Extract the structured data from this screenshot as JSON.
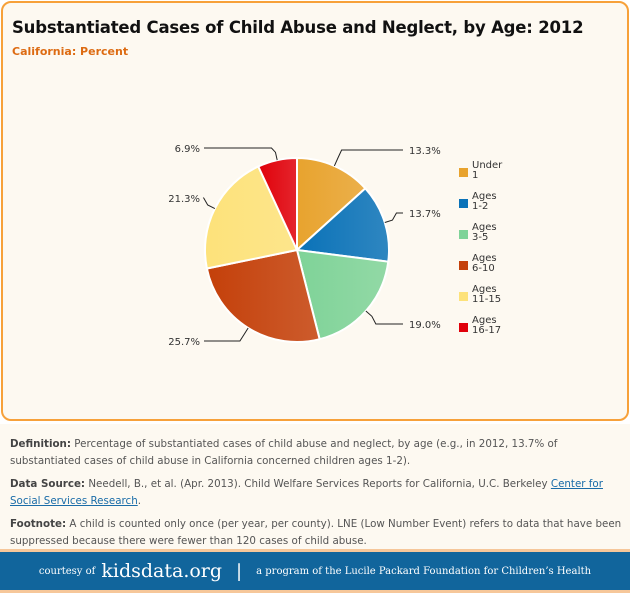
{
  "header": {
    "title": "Substantiated Cases of Child Abuse and Neglect, by Age: 2012",
    "subtitle": "California: Percent"
  },
  "chart_data": {
    "type": "pie",
    "title": "Substantiated Cases of Child Abuse and Neglect, by Age: 2012",
    "subtitle": "California: Percent",
    "categories": [
      "Under 1",
      "Ages 1-2",
      "Ages 3-5",
      "Ages 6-10",
      "Ages 11-15",
      "Ages 16-17"
    ],
    "legend_lines": [
      [
        "Under",
        "1"
      ],
      [
        "Ages",
        "1-2"
      ],
      [
        "Ages",
        "3-5"
      ],
      [
        "Ages",
        "6-10"
      ],
      [
        "Ages",
        "11-15"
      ],
      [
        "Ages",
        "16-17"
      ]
    ],
    "values": [
      13.3,
      13.7,
      19.0,
      25.7,
      21.3,
      6.9
    ],
    "data_labels": [
      "13.3%",
      "13.7%",
      "19.0%",
      "25.7%",
      "21.3%",
      "6.9%"
    ],
    "colors": [
      "#e8a32e",
      "#0a72b8",
      "#7fd398",
      "#c4400a",
      "#fde27a",
      "#e0000a"
    ],
    "legend_position": "right"
  },
  "notes": {
    "definition_label": "Definition:",
    "definition": " Percentage of substantiated cases of child abuse and neglect, by age (e.g., in 2012, 13.7% of substantiated cases of child abuse in California concerned children ages 1-2).",
    "source_label": "Data Source:",
    "source": " Needell, B., et al. (Apr. 2013). Child Welfare Services Reports for California, U.C. Berkeley ",
    "source_link": "Center for Social Services Research",
    "source_end": ".",
    "footnote_label": "Footnote:",
    "footnote": " A child is counted only once (per year, per county). LNE (Low Number Event) refers to data that have been suppressed because there were fewer than 120 cases of child abuse."
  },
  "footer": {
    "courtesy": "courtesy of",
    "brand": "kidsdata.org",
    "separator": "|",
    "program": "a program of the Lucile Packard Foundation for Children’s Health"
  }
}
